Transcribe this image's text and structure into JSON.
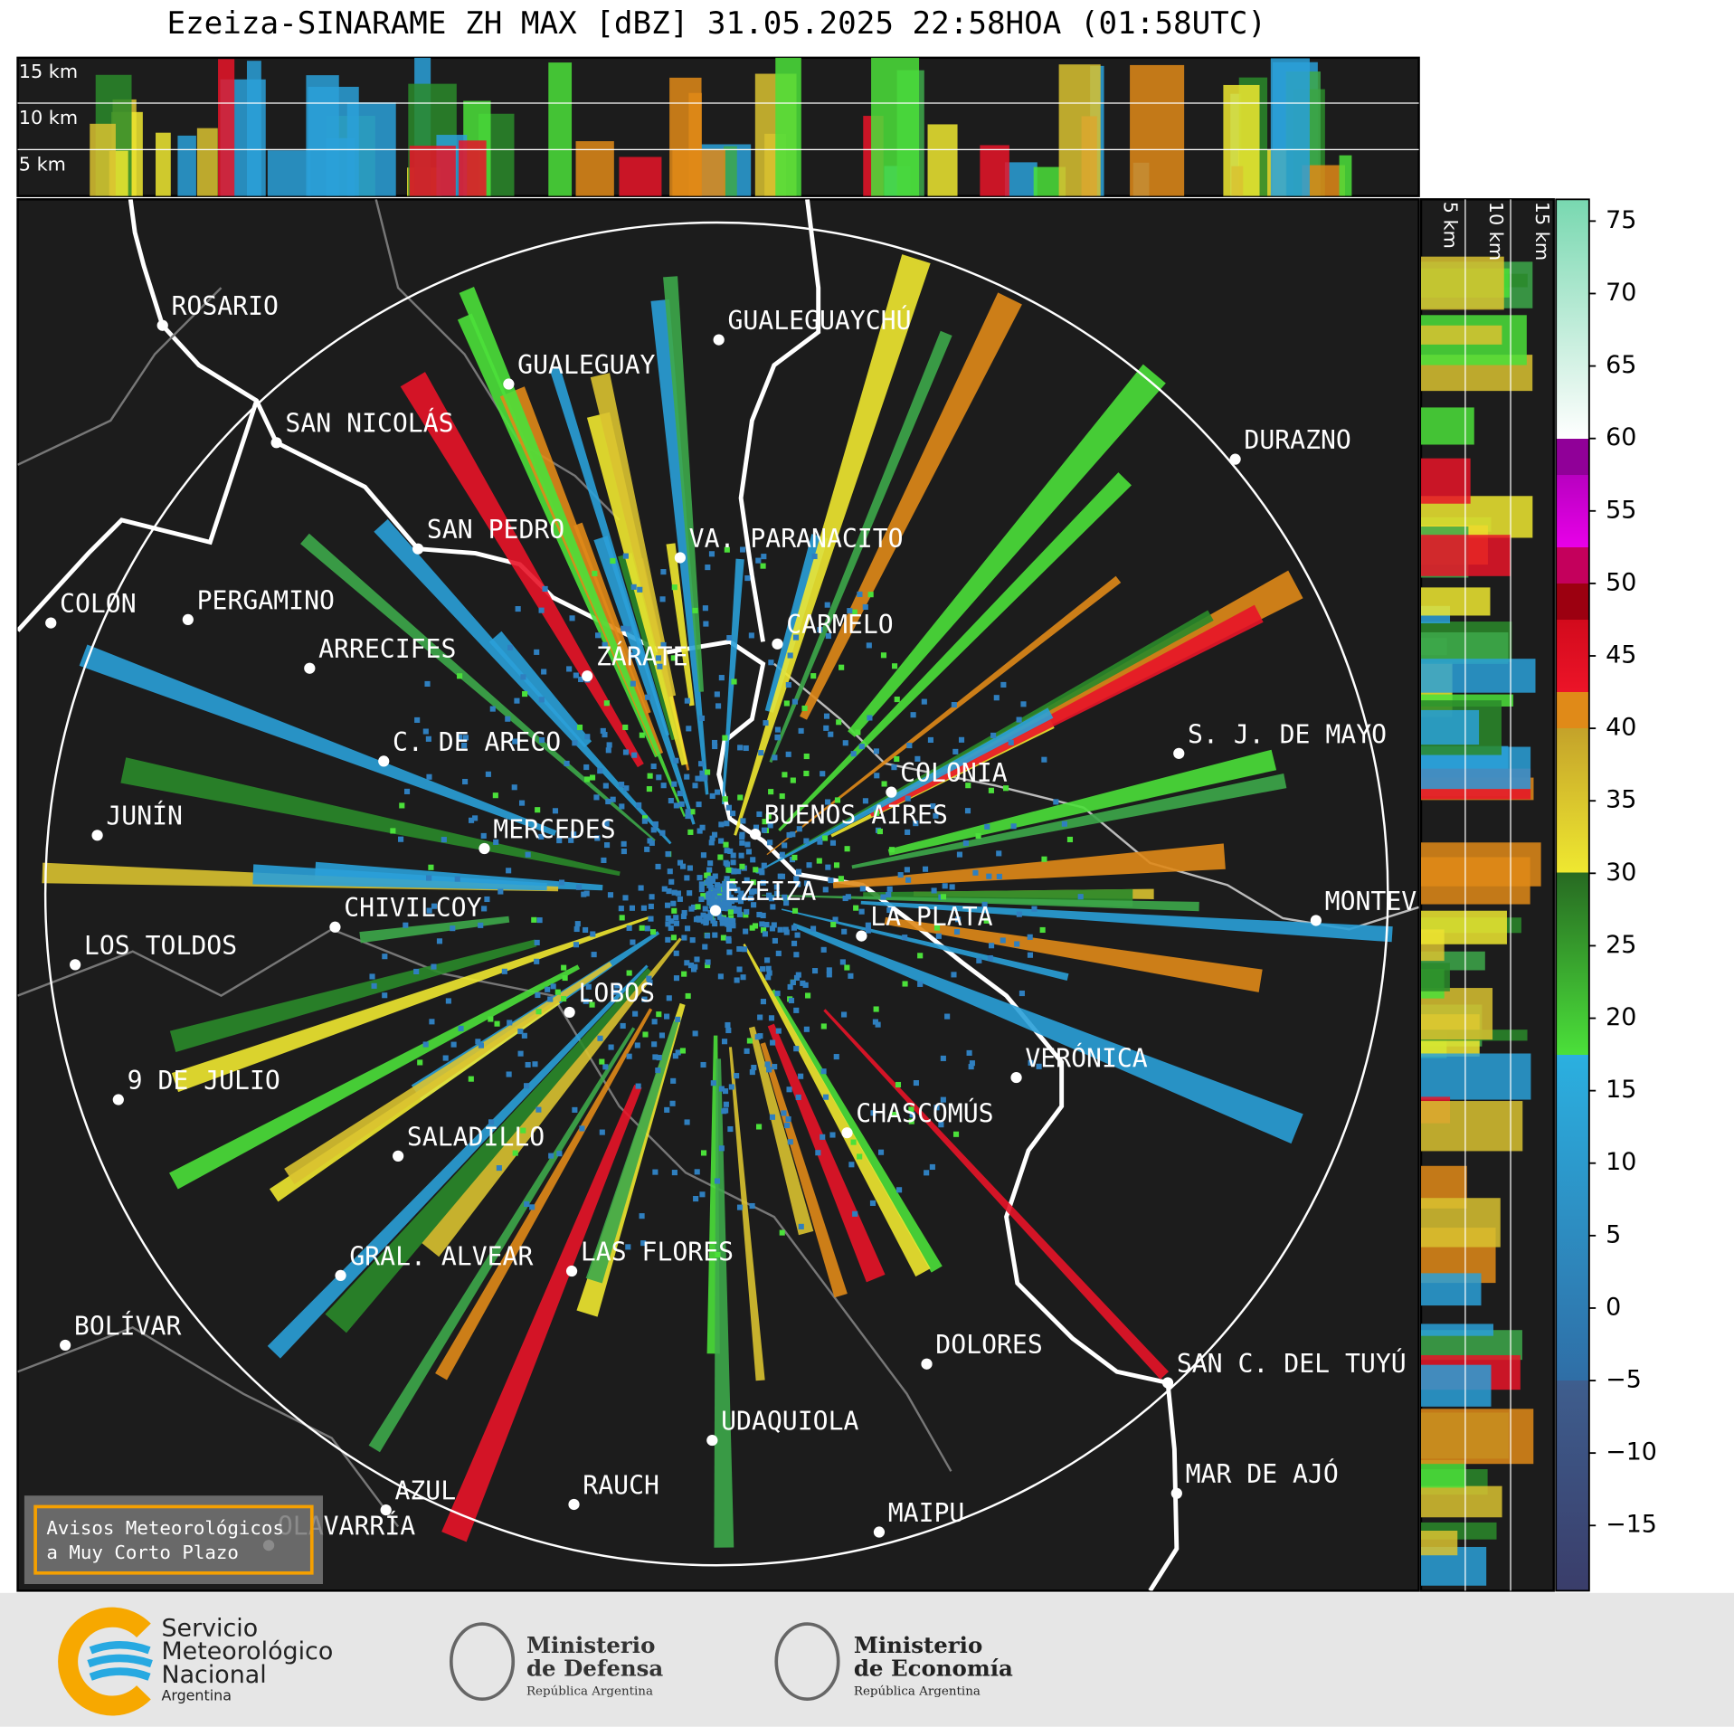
{
  "title": "Ezeiza-SINARAME ZH MAX [dBZ] 31.05.2025 22:58HOA (01:58UTC)",
  "height_labels": [
    "15 km",
    "10 km",
    "5 km"
  ],
  "side_height_labels": [
    "5 km",
    "10 km",
    "15 km"
  ],
  "cities": [
    "ROSARIO",
    "GUALEGUAYCHÚ",
    "GUALEGUAY",
    "SAN NICOLÁS",
    "DURAZNO",
    "SAN PEDRO",
    "VA. PARANACITO",
    "COLON",
    "PERGAMINO",
    "CARMELO",
    "ARRECIFES",
    "ZÁRATE",
    "C. DE ARECO",
    "S. J. DE MAYO",
    "COLONIA",
    "JUNÍN",
    "BUENOS AIRES",
    "MERCEDES",
    "EZEIZA",
    "MONTEVIDEO",
    "LA PLATA",
    "CHIVILCOY",
    "LOS TOLDOS",
    "LOBOS",
    "VERÓNICA",
    "9 DE JULIO",
    "CHASCOMÚS",
    "SALADILLO",
    "GRAL. ALVEAR",
    "LAS FLORES",
    "BOLÍVAR",
    "DOLORES",
    "SAN C. DEL TUYÚ",
    "UDAQUIOLA",
    "MAR DE AJÓ",
    "AZUL",
    "RAUCH",
    "MAIPU",
    "OLAVARRÍA"
  ],
  "colorbar": {
    "lim": [
      -19.5,
      76.5
    ],
    "ticks": [
      {
        "value": -15,
        "label": "−15"
      },
      {
        "value": -10,
        "label": "−10"
      },
      {
        "value": -5,
        "label": "−5"
      },
      0,
      5,
      10,
      15,
      20,
      25,
      30,
      35,
      40,
      45,
      50,
      55,
      60,
      65,
      70,
      75
    ]
  },
  "warning_box": [
    "Avisos Meteorológicos",
    "a Muy Corto Plazo"
  ],
  "logos": {
    "smn": [
      "Servicio",
      "Meteorológico",
      "Nacional",
      "Argentina"
    ],
    "defensa": [
      "Ministerio",
      "de Defensa",
      "República Argentina"
    ],
    "economia": [
      "Ministerio",
      "de Economía",
      "República Argentina"
    ]
  }
}
